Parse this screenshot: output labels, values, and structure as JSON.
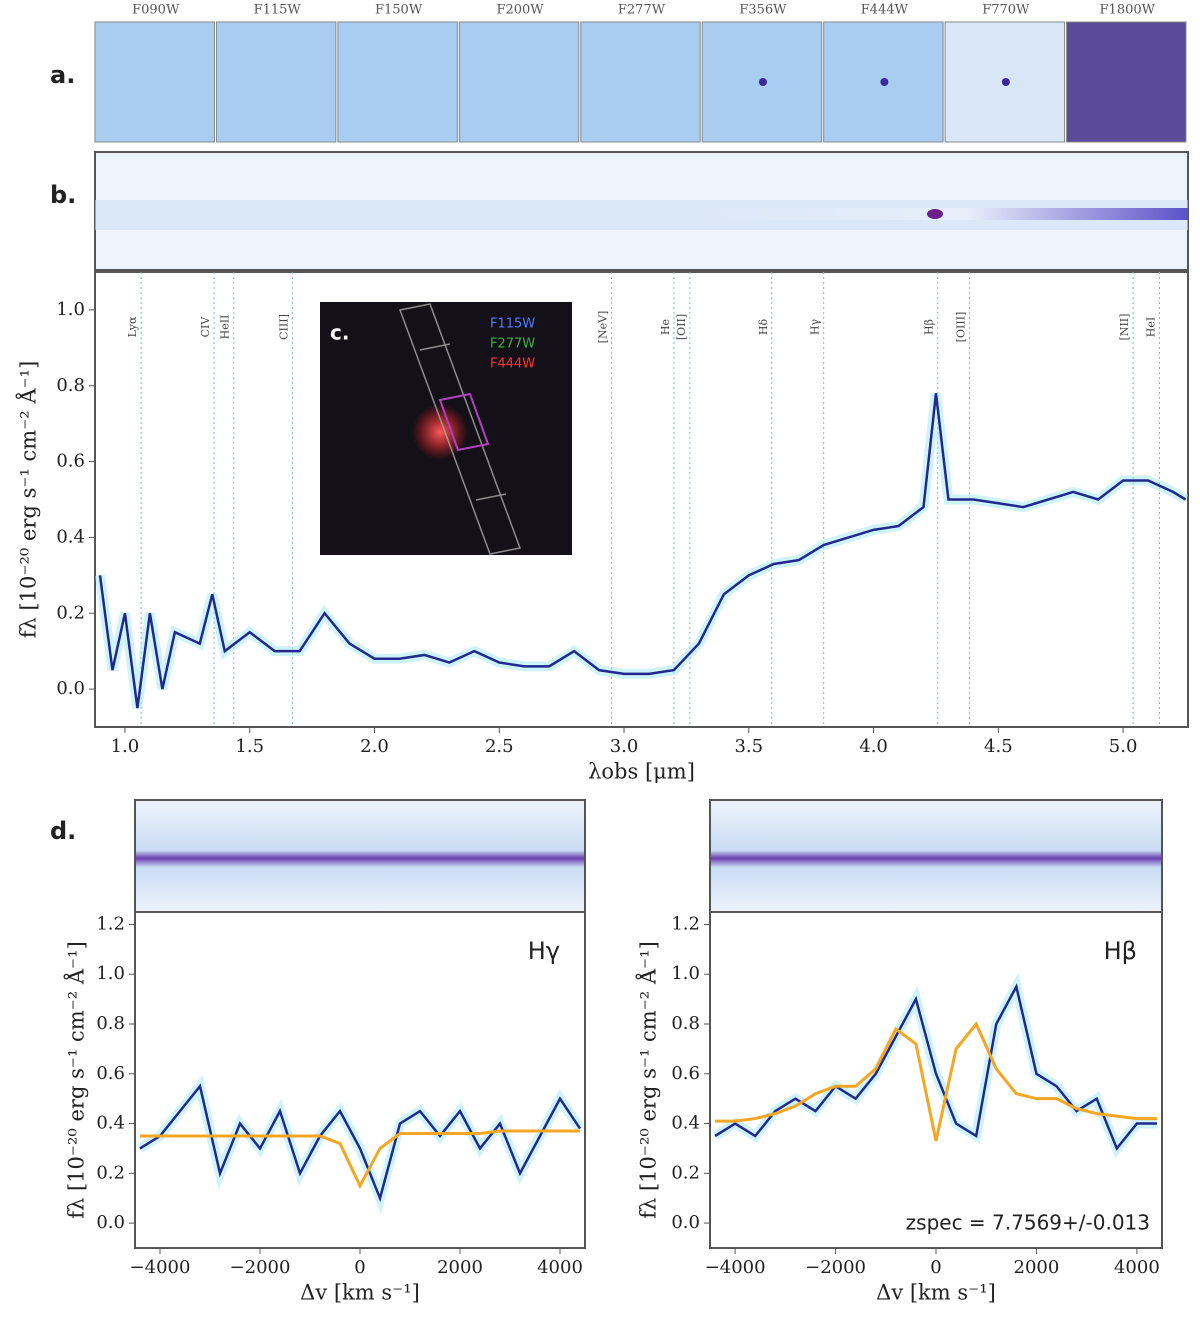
{
  "figure": {
    "panel_labels": [
      "a.",
      "b.",
      "c.",
      "d."
    ],
    "filters": [
      "F090W",
      "F115W",
      "F150W",
      "F200W",
      "F277W",
      "F356W",
      "F444W",
      "F770W",
      "F1800W"
    ],
    "inset_filters": [
      "F115W",
      "F277W",
      "F444W"
    ]
  },
  "chart_data": [
    {
      "type": "line",
      "x": [
        0.9,
        0.95,
        1.0,
        1.05,
        1.1,
        1.15,
        1.2,
        1.3,
        1.35,
        1.4,
        1.5,
        1.6,
        1.7,
        1.8,
        1.9,
        2.0,
        2.1,
        2.2,
        2.3,
        2.4,
        2.5,
        2.6,
        2.7,
        2.8,
        2.9,
        3.0,
        3.1,
        3.2,
        3.3,
        3.4,
        3.5,
        3.6,
        3.7,
        3.8,
        3.9,
        4.0,
        4.1,
        4.2,
        4.25,
        4.3,
        4.4,
        4.5,
        4.6,
        4.7,
        4.8,
        4.9,
        5.0,
        5.1,
        5.2,
        5.25
      ],
      "series": [
        {
          "color": "#1f2a8c",
          "values": [
            0.3,
            0.05,
            0.2,
            -0.05,
            0.2,
            0.0,
            0.15,
            0.12,
            0.25,
            0.1,
            0.15,
            0.1,
            0.1,
            0.2,
            0.12,
            0.08,
            0.08,
            0.09,
            0.07,
            0.1,
            0.07,
            0.06,
            0.06,
            0.1,
            0.05,
            0.04,
            0.04,
            0.05,
            0.12,
            0.25,
            0.3,
            0.33,
            0.34,
            0.38,
            0.4,
            0.42,
            0.43,
            0.48,
            0.78,
            0.5,
            0.5,
            0.49,
            0.48,
            0.5,
            0.52,
            0.5,
            0.55,
            0.55,
            0.52,
            0.5
          ]
        }
      ],
      "xlim": [
        0.88,
        5.26
      ],
      "ylim": [
        -0.1,
        1.1
      ],
      "xticks": [
        {
          "value": 1,
          "label": "1.0"
        },
        1.5,
        {
          "value": 2,
          "label": "2.0"
        },
        2.5,
        {
          "value": 3,
          "label": "3.0"
        },
        3.5,
        {
          "value": 4,
          "label": "4.0"
        },
        4.5,
        {
          "value": 5,
          "label": "5.0"
        }
      ],
      "yticks": [
        {
          "value": 0,
          "label": "0.0"
        },
        0.2,
        0.4,
        0.6,
        0.8,
        {
          "value": 1,
          "label": "1.0"
        }
      ],
      "xlabel": "λobs [μm]",
      "ylabel": "fλ [10⁻²⁰ erg s⁻¹ cm⁻² Å⁻¹]",
      "line_markers": [
        {
          "label": "Lyα",
          "x": 1.065
        },
        {
          "label": "CIV",
          "x": 1.357
        },
        {
          "label": "HeII",
          "x": 1.436
        },
        {
          "label": "CIII]",
          "x": 1.671
        },
        {
          "label": "[NeV]",
          "x": 2.95
        },
        {
          "label": "He",
          "x": 3.2
        },
        {
          "label": "[OII]",
          "x": 3.264
        },
        {
          "label": "Hδ",
          "x": 3.592
        },
        {
          "label": "Hγ",
          "x": 3.8
        },
        {
          "label": "Hβ",
          "x": 4.257
        },
        {
          "label": "[OIII]",
          "x": 4.385
        },
        {
          "label": "[NII]",
          "x": 5.04
        },
        {
          "label": "HeI",
          "x": 5.146
        }
      ]
    },
    {
      "type": "line",
      "title": "Hγ",
      "x": [
        -4400,
        -4000,
        -3600,
        -3200,
        -2800,
        -2400,
        -2000,
        -1600,
        -1200,
        -800,
        -400,
        0,
        400,
        800,
        1200,
        1600,
        2000,
        2400,
        2800,
        3200,
        3600,
        4000,
        4400
      ],
      "series": [
        {
          "color": "#1f2a8c",
          "values": [
            0.3,
            0.35,
            0.45,
            0.55,
            0.2,
            0.4,
            0.3,
            0.45,
            0.2,
            0.35,
            0.45,
            0.3,
            0.1,
            0.4,
            0.45,
            0.35,
            0.45,
            0.3,
            0.4,
            0.2,
            0.35,
            0.5,
            0.38
          ]
        },
        {
          "color": "#f5a623",
          "values": [
            0.35,
            0.35,
            0.35,
            0.35,
            0.35,
            0.35,
            0.35,
            0.35,
            0.35,
            0.35,
            0.32,
            0.15,
            0.3,
            0.36,
            0.36,
            0.36,
            0.36,
            0.36,
            0.37,
            0.37,
            0.37,
            0.37,
            0.37
          ]
        }
      ],
      "xlim": [
        -4500,
        4500
      ],
      "ylim": [
        -0.1,
        1.25
      ],
      "xticks": [
        {
          "value": -4000,
          "label": "−4000"
        },
        {
          "value": -2000,
          "label": "−2000"
        },
        0,
        2000,
        4000
      ],
      "yticks": [
        {
          "value": 0,
          "label": "0.0"
        },
        0.2,
        0.4,
        0.6,
        0.8,
        {
          "value": 1,
          "label": "1.0"
        },
        1.2
      ],
      "xlabel": "Δv [km s⁻¹]",
      "ylabel": "fλ [10⁻²⁰ erg s⁻¹ cm⁻² Å⁻¹]"
    },
    {
      "type": "line",
      "title": "Hβ",
      "annotation": "zspec = 7.7569+/-0.013",
      "x": [
        -4400,
        -4000,
        -3600,
        -3200,
        -2800,
        -2400,
        -2000,
        -1600,
        -1200,
        -800,
        -400,
        0,
        400,
        800,
        1200,
        1600,
        2000,
        2400,
        2800,
        3200,
        3600,
        4000,
        4400
      ],
      "series": [
        {
          "color": "#1f2a8c",
          "values": [
            0.35,
            0.4,
            0.35,
            0.45,
            0.5,
            0.45,
            0.55,
            0.5,
            0.6,
            0.75,
            0.9,
            0.6,
            0.4,
            0.35,
            0.8,
            0.95,
            0.6,
            0.55,
            0.45,
            0.5,
            0.3,
            0.4,
            0.4
          ]
        },
        {
          "color": "#f5a623",
          "values": [
            0.41,
            0.41,
            0.42,
            0.44,
            0.47,
            0.52,
            0.55,
            0.55,
            0.62,
            0.78,
            0.72,
            0.33,
            0.7,
            0.8,
            0.62,
            0.52,
            0.5,
            0.5,
            0.46,
            0.44,
            0.43,
            0.42,
            0.42
          ]
        }
      ],
      "xlim": [
        -4500,
        4500
      ],
      "ylim": [
        -0.1,
        1.25
      ],
      "xticks": [
        {
          "value": -4000,
          "label": "−4000"
        },
        {
          "value": -2000,
          "label": "−2000"
        },
        0,
        2000,
        4000
      ],
      "yticks": [
        {
          "value": 0,
          "label": "0.0"
        },
        0.2,
        0.4,
        0.6,
        0.8,
        {
          "value": 1,
          "label": "1.0"
        },
        1.2
      ],
      "xlabel": "Δv [km s⁻¹]",
      "ylabel": "fλ [10⁻²⁰ erg s⁻¹ cm⁻² Å⁻¹]"
    }
  ]
}
